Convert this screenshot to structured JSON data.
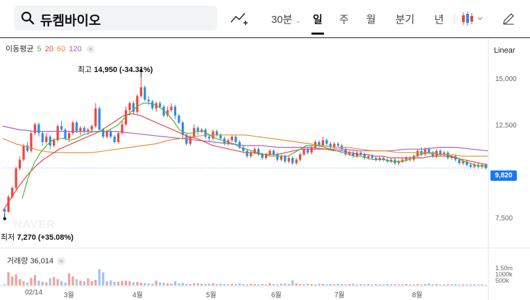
{
  "search": {
    "query": "듀켐바이오"
  },
  "periods": [
    {
      "label": "30분",
      "dropdown": true
    },
    {
      "label": "일",
      "active": true
    },
    {
      "label": "주"
    },
    {
      "label": "월"
    },
    {
      "label": "분기"
    },
    {
      "label": "년"
    }
  ],
  "icons": {
    "search": "search-icon",
    "compare": "compare-line-icon",
    "candle": "candlestick-icon",
    "draw": "pencil-icon"
  },
  "ma_legend": {
    "title": "이동평균",
    "items": [
      {
        "label": "5",
        "color": "#48b63b"
      },
      {
        "label": "20",
        "color": "#e8423b"
      },
      {
        "label": "60",
        "color": "#f08a2a"
      },
      {
        "label": "120",
        "color": "#a55ecf"
      }
    ]
  },
  "scale_label": "Linear",
  "colors": {
    "up": "#f0443c",
    "down": "#2c8af0",
    "badge": "#1e78f0"
  },
  "chart_data": {
    "type": "candlestick",
    "y_ticks": [
      "15,000",
      "12,500",
      "10,000",
      "7,500"
    ],
    "y_tick_values": [
      15000,
      12500,
      10000,
      7500
    ],
    "ylim": [
      6200,
      16200
    ],
    "x_labels": [
      "02/14",
      "3월",
      "4월",
      "5월",
      "6월",
      "7월",
      "8월"
    ],
    "last_price": "9,820",
    "last_price_value": 9820,
    "annotations": {
      "high": {
        "prefix": "최고",
        "value": "14,950",
        "change": "(-34.31%)",
        "price": 14950
      },
      "low": {
        "prefix": "최저",
        "value": "7,270",
        "change": "(+35.08%)",
        "price": 7270
      }
    },
    "candles": [
      [
        7500,
        7350,
        7550,
        7270
      ],
      [
        7350,
        8200,
        8300,
        7300
      ],
      [
        8200,
        8700,
        8800,
        8100
      ],
      [
        8700,
        9800,
        9900,
        8600
      ],
      [
        9800,
        10300,
        10500,
        9700
      ],
      [
        10300,
        11100,
        11200,
        10200
      ],
      [
        11100,
        10800,
        11300,
        10700
      ],
      [
        10800,
        11800,
        11900,
        10700
      ],
      [
        11800,
        12300,
        12400,
        11700
      ],
      [
        12300,
        11800,
        12400,
        11600
      ],
      [
        11800,
        11300,
        11900,
        11100
      ],
      [
        11300,
        11600,
        11800,
        11200
      ],
      [
        11600,
        11100,
        11700,
        10900
      ],
      [
        11100,
        11400,
        11500,
        11000
      ],
      [
        11400,
        12200,
        12300,
        11300
      ],
      [
        12200,
        12000,
        12500,
        11900
      ],
      [
        12000,
        11500,
        12100,
        11400
      ],
      [
        11500,
        11800,
        11900,
        11300
      ],
      [
        11800,
        12400,
        12500,
        11700
      ],
      [
        12400,
        11900,
        12500,
        11800
      ],
      [
        11900,
        12100,
        12200,
        11700
      ],
      [
        12100,
        11900,
        12200,
        11800
      ],
      [
        11900,
        12000,
        12100,
        11700
      ],
      [
        12000,
        12200,
        12300,
        11900
      ],
      [
        12200,
        13200,
        13500,
        12100
      ],
      [
        13200,
        12000,
        13300,
        11900
      ],
      [
        12000,
        11600,
        12100,
        11500
      ],
      [
        11600,
        11900,
        12000,
        11500
      ],
      [
        11900,
        11600,
        12000,
        11500
      ],
      [
        11600,
        11300,
        11700,
        11200
      ],
      [
        11300,
        11800,
        11900,
        11200
      ],
      [
        11800,
        12300,
        12500,
        11700
      ],
      [
        12300,
        13100,
        13300,
        12200
      ],
      [
        13100,
        13500,
        13600,
        12800
      ],
      [
        13500,
        13000,
        13600,
        12900
      ],
      [
        13000,
        13900,
        14000,
        12900
      ],
      [
        13900,
        14400,
        14950,
        13800
      ],
      [
        14400,
        13700,
        14500,
        13600
      ],
      [
        13700,
        13600,
        13900,
        13400
      ],
      [
        13600,
        13200,
        13700,
        13100
      ],
      [
        13200,
        13500,
        13600,
        13000
      ],
      [
        13500,
        13300,
        13600,
        13200
      ],
      [
        13300,
        12800,
        13400,
        12700
      ],
      [
        12800,
        13100,
        13300,
        12700
      ],
      [
        13100,
        13300,
        13500,
        13000
      ],
      [
        13300,
        12800,
        13400,
        12600
      ],
      [
        12800,
        12400,
        12900,
        12300
      ],
      [
        12400,
        11700,
        12500,
        11500
      ],
      [
        11700,
        11200,
        11800,
        11100
      ],
      [
        11200,
        11600,
        11700,
        11100
      ],
      [
        11600,
        12100,
        12300,
        11500
      ],
      [
        12100,
        11900,
        12200,
        11700
      ],
      [
        11900,
        12000,
        12100,
        11800
      ],
      [
        12000,
        11600,
        12100,
        11500
      ],
      [
        11600,
        11500,
        11700,
        11300
      ],
      [
        11500,
        11900,
        12000,
        11400
      ],
      [
        11900,
        11700,
        12000,
        11600
      ],
      [
        11700,
        11500,
        11800,
        11400
      ],
      [
        11500,
        11200,
        11600,
        11100
      ],
      [
        11200,
        11400,
        11500,
        11100
      ],
      [
        11400,
        11600,
        11700,
        11300
      ],
      [
        11600,
        11300,
        11700,
        11200
      ],
      [
        11300,
        11000,
        11400,
        10900
      ],
      [
        11000,
        10800,
        11100,
        10700
      ],
      [
        10800,
        10500,
        10900,
        10400
      ],
      [
        10500,
        10700,
        10800,
        10400
      ],
      [
        10700,
        10900,
        11000,
        10600
      ],
      [
        10900,
        10600,
        11000,
        10500
      ],
      [
        10600,
        10400,
        10700,
        10300
      ],
      [
        10400,
        10600,
        10700,
        10300
      ],
      [
        10600,
        10800,
        10900,
        10500
      ],
      [
        10800,
        10600,
        10900,
        10500
      ],
      [
        10600,
        10300,
        10700,
        10200
      ],
      [
        10300,
        10500,
        10600,
        10200
      ],
      [
        10500,
        10200,
        10600,
        10100
      ],
      [
        10200,
        10400,
        10500,
        10100
      ],
      [
        10400,
        10100,
        10500,
        10000
      ],
      [
        10100,
        10300,
        10400,
        10000
      ],
      [
        10300,
        10600,
        10700,
        10200
      ],
      [
        10600,
        10900,
        11000,
        10500
      ],
      [
        10900,
        10700,
        11000,
        10600
      ],
      [
        10700,
        11000,
        11100,
        10600
      ],
      [
        11000,
        11300,
        11400,
        10900
      ],
      [
        11300,
        11100,
        11400,
        11000
      ],
      [
        11100,
        11400,
        11600,
        11000
      ],
      [
        11400,
        11200,
        11500,
        11100
      ],
      [
        11200,
        11000,
        11300,
        10900
      ],
      [
        11000,
        11200,
        11300,
        10900
      ],
      [
        11200,
        11100,
        11300,
        11000
      ],
      [
        11100,
        10900,
        11200,
        10800
      ],
      [
        10900,
        10600,
        11000,
        10500
      ],
      [
        10600,
        10700,
        10800,
        10500
      ],
      [
        10700,
        10500,
        10800,
        10400
      ],
      [
        10500,
        10700,
        10800,
        10400
      ],
      [
        10700,
        10600,
        10800,
        10500
      ],
      [
        10600,
        10400,
        10700,
        10300
      ],
      [
        10400,
        10500,
        10600,
        10300
      ],
      [
        10500,
        10400,
        10600,
        10300
      ],
      [
        10400,
        10300,
        10500,
        10200
      ],
      [
        10300,
        10400,
        10500,
        10200
      ],
      [
        10400,
        10300,
        10500,
        10200
      ],
      [
        10300,
        10200,
        10400,
        10100
      ],
      [
        10200,
        10300,
        10400,
        10100
      ],
      [
        10300,
        10100,
        10400,
        10000
      ],
      [
        10100,
        10200,
        10300,
        10000
      ],
      [
        10200,
        10300,
        10400,
        10100
      ],
      [
        10300,
        10400,
        10500,
        10200
      ],
      [
        10400,
        10300,
        10500,
        10200
      ],
      [
        10300,
        10500,
        10600,
        10200
      ],
      [
        10500,
        10800,
        10900,
        10400
      ],
      [
        10800,
        10600,
        11000,
        10500
      ],
      [
        10600,
        10900,
        11000,
        10500
      ],
      [
        10900,
        10700,
        11000,
        10600
      ],
      [
        10700,
        10500,
        10800,
        10400
      ],
      [
        10500,
        10800,
        10900,
        10400
      ],
      [
        10800,
        10600,
        10900,
        10500
      ],
      [
        10600,
        10700,
        10800,
        10500
      ],
      [
        10700,
        10400,
        10800,
        10300
      ],
      [
        10400,
        10500,
        10600,
        10300
      ],
      [
        10500,
        10300,
        10600,
        10200
      ],
      [
        10300,
        10100,
        10400,
        10000
      ],
      [
        10100,
        10200,
        10300,
        10000
      ],
      [
        10200,
        10000,
        10300,
        9900
      ],
      [
        10000,
        9900,
        10100,
        9800
      ],
      [
        9900,
        10000,
        10100,
        9800
      ],
      [
        10000,
        9900,
        10100,
        9800
      ],
      [
        9900,
        10000,
        10100,
        9800
      ],
      [
        10000,
        9820,
        10100,
        9750
      ]
    ],
    "ma": {
      "5": [
        8100,
        9300,
        10100,
        10700,
        11100,
        11400,
        11500,
        11500,
        11400,
        11500,
        11700,
        11800,
        11900,
        11900,
        11900,
        12100,
        12300,
        12700,
        13000,
        13300,
        13500,
        13500,
        13400,
        13200,
        12900,
        12500,
        12000,
        11800,
        11800,
        11900,
        11900,
        11700,
        11500,
        11400,
        11300,
        11200,
        11000,
        10900,
        10800,
        10700,
        10600,
        10500,
        10500,
        10500,
        10500,
        10700,
        10900,
        11100,
        11100,
        11100,
        11000,
        10900,
        10800,
        10700,
        10600,
        10500,
        10500,
        10400,
        10300,
        10300,
        10300,
        10200,
        10200,
        10200,
        10300,
        10500,
        10600,
        10700,
        10700,
        10600,
        10600,
        10500,
        10400,
        10200,
        10100,
        10000,
        9950,
        9900
      ],
      "20": [
        7400,
        8100,
        8800,
        9400,
        9900,
        10300,
        10600,
        10900,
        11100,
        11300,
        11500,
        11700,
        11900,
        12200,
        12500,
        12800,
        12900,
        12800,
        12600,
        12400,
        12200,
        12000,
        11800,
        11600,
        11500,
        11300,
        11100,
        11000,
        10900,
        10800,
        10700,
        10700,
        10600,
        10600,
        10600,
        10700,
        10800,
        10900,
        10900,
        10900,
        10900,
        10800,
        10800,
        10700,
        10600,
        10600,
        10500,
        10500,
        10400,
        10400,
        10400,
        10400,
        10400,
        10500,
        10500,
        10500,
        10400,
        10300,
        10200,
        10100,
        10000
      ],
      "60": [
        11500,
        11200,
        11000,
        10800,
        10700,
        10700,
        10700,
        10700,
        10800,
        10900,
        11000,
        11100,
        11200,
        11400,
        11500,
        11600,
        11700,
        11700,
        11700,
        11700,
        11600,
        11500,
        11400,
        11300,
        11200,
        11100,
        11000,
        11000,
        10900,
        10800,
        10800,
        10700,
        10700,
        10700,
        10600,
        10600,
        10500,
        10500,
        10500
      ],
      "120": [
        12200,
        12000,
        11900,
        11900,
        11900,
        11900,
        11900,
        11900,
        11800,
        11700,
        11600,
        11500,
        11400,
        11300,
        11200,
        11100,
        11100,
        11000,
        11000,
        11000,
        10900,
        10900,
        10800,
        10800,
        10800,
        10900,
        10900,
        11000,
        11000,
        10900,
        10800
      ]
    },
    "volume": {
      "legend_label": "거래량",
      "legend_value": "36,014",
      "ticks": [
        "1.50m",
        "1000k",
        "500k"
      ],
      "values": [
        30,
        380,
        260,
        320,
        180,
        120,
        90,
        220,
        300,
        140,
        110,
        90,
        210,
        240,
        180,
        130,
        80,
        350,
        260,
        180,
        140,
        120,
        200,
        120,
        160,
        470,
        380,
        120,
        150,
        100,
        110,
        130,
        140,
        120,
        90,
        100,
        80,
        70,
        60,
        50,
        140,
        90,
        80,
        60,
        50,
        120,
        60,
        70,
        50,
        40,
        60,
        70,
        50,
        40,
        50,
        60,
        40,
        50,
        40,
        30,
        50,
        40,
        60,
        40,
        30,
        50,
        40,
        30,
        40,
        30,
        70,
        40,
        30,
        50,
        60,
        40,
        150,
        60,
        40,
        30,
        50,
        40,
        30,
        50,
        40,
        30,
        40,
        30,
        50,
        40,
        30,
        40,
        50,
        30,
        40,
        30,
        40,
        30,
        40,
        30,
        30,
        40,
        30,
        40,
        30,
        30,
        40,
        30,
        30,
        40,
        30,
        40,
        60,
        30,
        40,
        30,
        30,
        40,
        30,
        40,
        30,
        30,
        30,
        30,
        30,
        30,
        30,
        20
      ]
    }
  },
  "watermark": "NAVER"
}
